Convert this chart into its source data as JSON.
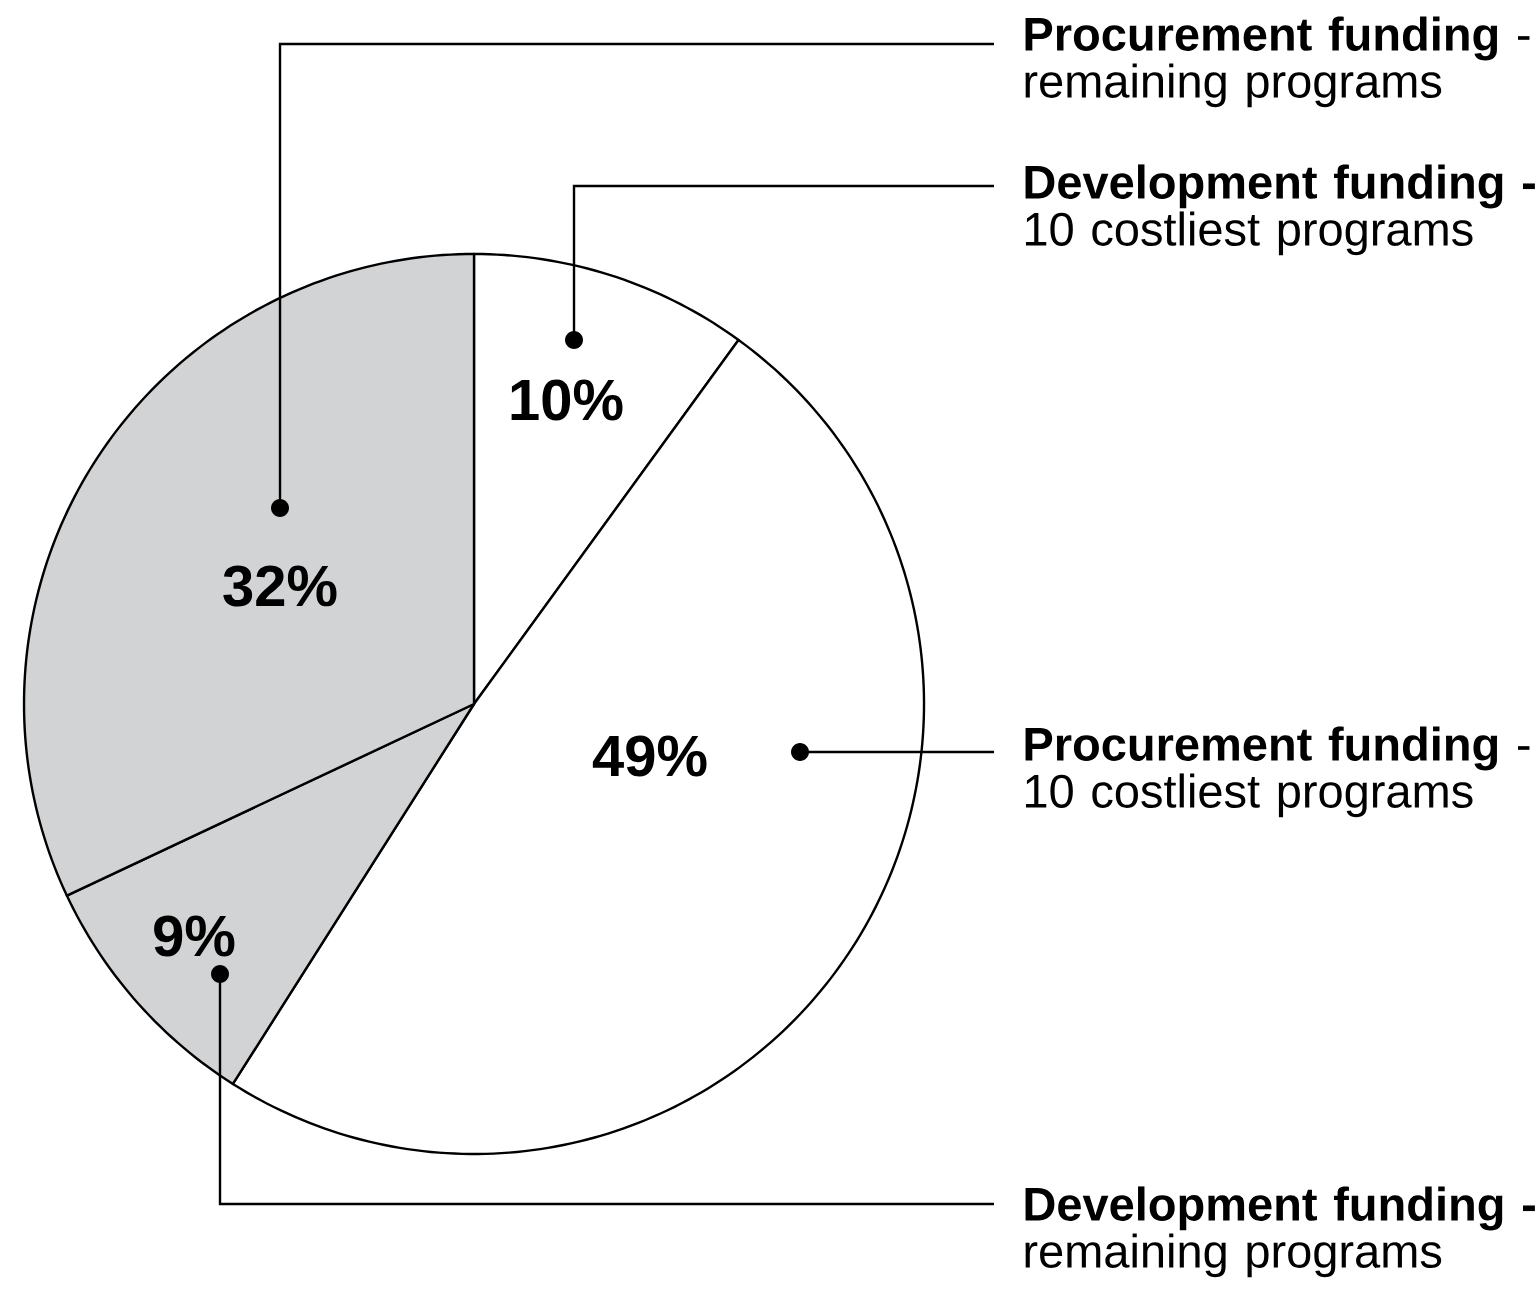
{
  "chart_data": {
    "type": "pie",
    "categories": [
      "**Development funding -** 10 costliest programs",
      "**Procurement funding** - 10 costliest programs",
      "**Development funding -** remaining programs",
      "**Procurement funding** - remaining programs"
    ],
    "values": [
      10,
      49,
      9,
      32
    ],
    "value_labels": [
      "10%",
      "49%",
      "9%",
      "32%"
    ],
    "colors": [
      "#ffffff",
      "#ffffff",
      "#d1d3d4",
      "#d1d3d4"
    ]
  }
}
